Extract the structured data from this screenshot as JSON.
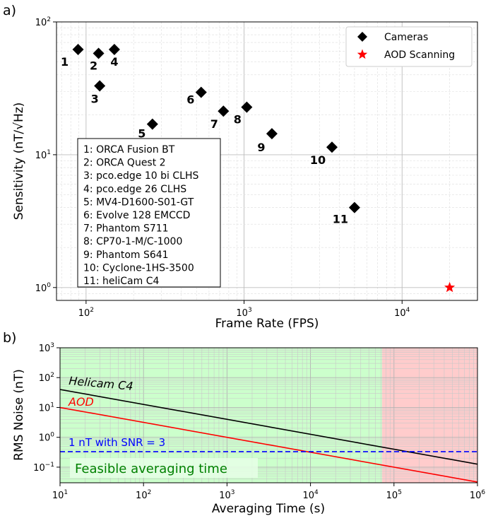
{
  "chart_data": [
    {
      "panel_label": "a)",
      "type": "scatter",
      "xlabel": "Frame Rate (FPS)",
      "ylabel": "Sensitivity (nT/√Hz)",
      "xscale": "log",
      "yscale": "log",
      "xlim": [
        65,
        30000
      ],
      "ylim": [
        0.8,
        100
      ],
      "x_ticks": [
        {
          "value": 100,
          "base": "10",
          "exp": "2"
        },
        {
          "value": 1000,
          "base": "10",
          "exp": "3"
        },
        {
          "value": 10000,
          "base": "10",
          "exp": "4"
        }
      ],
      "y_ticks": [
        {
          "value": 1,
          "base": "10",
          "exp": "0"
        },
        {
          "value": 10,
          "base": "10",
          "exp": "1"
        },
        {
          "value": 100,
          "base": "10",
          "exp": "2"
        }
      ],
      "grid": true,
      "legend_position": "top-right",
      "series": [
        {
          "name": "Cameras",
          "marker": "diamond",
          "color": "#000000",
          "points": [
            {
              "id": "1",
              "name": "ORCA Fusion BT",
              "x": 89,
              "y": 62
            },
            {
              "id": "2",
              "name": "ORCA Quest 2",
              "x": 120,
              "y": 58
            },
            {
              "id": "3",
              "name": "pco.edge 10 bi CLHS",
              "x": 122,
              "y": 33
            },
            {
              "id": "4",
              "name": "pco.edge 26 CLHS",
              "x": 151,
              "y": 62
            },
            {
              "id": "5",
              "name": "MV4-D1600-S01-GT",
              "x": 263,
              "y": 17
            },
            {
              "id": "6",
              "name": "Evolve 128 EMCCD",
              "x": 535,
              "y": 29.5
            },
            {
              "id": "7",
              "name": "Phantom S711",
              "x": 740,
              "y": 21.3
            },
            {
              "id": "8",
              "name": "CP70-1-M/C-1000",
              "x": 1040,
              "y": 22.8
            },
            {
              "id": "9",
              "name": "Phantom S641",
              "x": 1500,
              "y": 14.4
            },
            {
              "id": "10",
              "name": "Cyclone-1HS-3500",
              "x": 3600,
              "y": 11.4
            },
            {
              "id": "11",
              "name": "heliCam C4",
              "x": 5000,
              "y": 4
            }
          ]
        },
        {
          "name": "AOD Scanning",
          "marker": "star",
          "color": "#ff0000",
          "points": [
            {
              "x": 20000,
              "y": 1
            }
          ]
        }
      ],
      "camera_list": [
        "1: ORCA Fusion BT",
        "2: ORCA Quest 2",
        "3: pco.edge 10 bi CLHS",
        "4: pco.edge 26 CLHS",
        "5: MV4-D1600-S01-GT",
        "6: Evolve 128 EMCCD",
        "7: Phantom S711",
        "8: CP70-1-M/C-1000",
        "9: Phantom S641",
        "10: Cyclone-1HS-3500",
        "11: heliCam C4"
      ]
    },
    {
      "panel_label": "b)",
      "type": "line",
      "xlabel": "Averaging Time (s)",
      "ylabel": "RMS Noise (nT)",
      "xscale": "log",
      "yscale": "log",
      "xlim": [
        10,
        1000000
      ],
      "ylim": [
        0.03,
        1000
      ],
      "x_ticks": [
        {
          "value": 10,
          "base": "10",
          "exp": "1"
        },
        {
          "value": 100,
          "base": "10",
          "exp": "2"
        },
        {
          "value": 1000,
          "base": "10",
          "exp": "3"
        },
        {
          "value": 10000,
          "base": "10",
          "exp": "4"
        },
        {
          "value": 100000,
          "base": "10",
          "exp": "5"
        },
        {
          "value": 1000000,
          "base": "10",
          "exp": "6"
        }
      ],
      "y_ticks": [
        {
          "value": 0.1,
          "base": "10",
          "exp": "−1"
        },
        {
          "value": 1,
          "base": "10",
          "exp": "0"
        },
        {
          "value": 10,
          "base": "10",
          "exp": "1"
        },
        {
          "value": 100,
          "base": "10",
          "exp": "2"
        },
        {
          "value": 1000,
          "base": "10",
          "exp": "3"
        }
      ],
      "grid": true,
      "series": [
        {
          "name": "Helicam C4",
          "color": "#000000",
          "style": "solid",
          "x": [
            10,
            1000000
          ],
          "y": [
            40,
            0.126
          ]
        },
        {
          "name": "AOD",
          "color": "#ff0000",
          "style": "solid",
          "x": [
            10,
            1000000
          ],
          "y": [
            10,
            0.0316
          ]
        },
        {
          "name": "1 nT with SNR = 3",
          "color": "#0000ff",
          "style": "dashed",
          "x": [
            10,
            1000000
          ],
          "y": [
            0.333,
            0.333
          ]
        }
      ],
      "regions": [
        {
          "label": "Feasible averaging time",
          "color": "#ccffcc",
          "x_range": [
            10,
            72000
          ]
        },
        {
          "label": "",
          "color": "#ffcccc",
          "x_range": [
            72000,
            1000000
          ]
        }
      ],
      "annotations": [
        {
          "text": "Helicam C4",
          "color": "#000000"
        },
        {
          "text": "AOD",
          "color": "#ff0000"
        },
        {
          "text": "1 nT with SNR = 3",
          "color": "#0000ff"
        },
        {
          "text": "Feasible averaging time",
          "color": "#008000"
        }
      ]
    }
  ]
}
